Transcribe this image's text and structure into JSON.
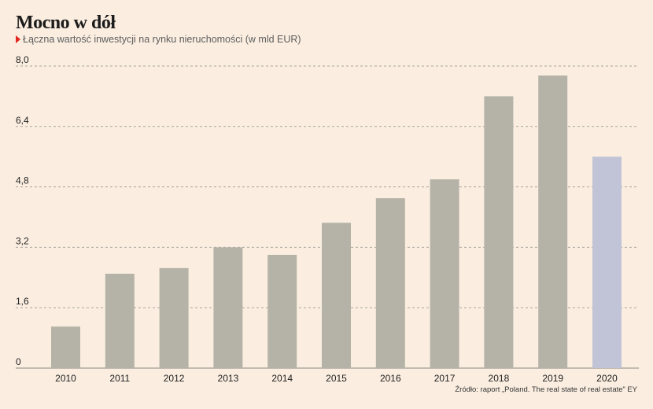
{
  "header": {
    "title": "Mocno w dół",
    "subtitle": "Łączna wartość inwestycji na rynku nieruchomości (w mld EUR)"
  },
  "footer": {
    "source": "Źródło: raport „Poland. The real state of real estate” EY"
  },
  "colors": {
    "background": "#fbeee1",
    "bar": "#b5b3a7",
    "bar_highlight": "#c0c4d6",
    "gridline": "#a7a39b",
    "marker": "#e3281d"
  },
  "chart_data": {
    "type": "bar",
    "title": "Mocno w dół",
    "subtitle": "Łączna wartość inwestycji na rynku nieruchomości (w mld EUR)",
    "categories": [
      "2010",
      "2011",
      "2012",
      "2013",
      "2014",
      "2015",
      "2016",
      "2017",
      "2018",
      "2019",
      "2020"
    ],
    "values": [
      1.1,
      2.5,
      2.65,
      3.2,
      3.0,
      3.85,
      4.5,
      5.0,
      7.2,
      7.75,
      5.6
    ],
    "highlighted_category": "2020",
    "ylim": [
      0,
      8.0
    ],
    "yticks": [
      "0",
      "1,6",
      "3,2",
      "4,8",
      "6,4",
      "8,0"
    ],
    "ytick_values": [
      0,
      1.6,
      3.2,
      4.8,
      6.4,
      8.0
    ],
    "grid": true,
    "legend": "none",
    "xlabel": "",
    "ylabel": ""
  }
}
